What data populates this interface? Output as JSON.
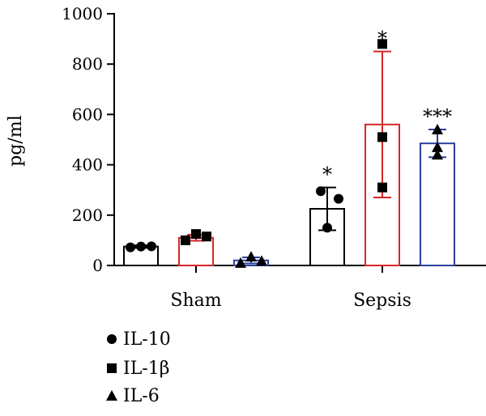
{
  "chart_data": {
    "type": "bar",
    "title": "",
    "xlabel": "",
    "ylabel": "pg/ml",
    "ylim": [
      0,
      1000
    ],
    "yticks": [
      0,
      200,
      400,
      600,
      800,
      1000
    ],
    "categories": [
      "Sham",
      "Sepsis"
    ],
    "grid": false,
    "legend_position": "bottom-left",
    "series": [
      {
        "name": "IL-10",
        "marker": "circle",
        "color": "#000000",
        "values": [
          75,
          225
        ],
        "error": [
          5,
          85
        ],
        "points": [
          [
            72,
            75,
            76
          ],
          [
            295,
            265,
            150
          ]
        ],
        "significance": [
          "",
          "*"
        ]
      },
      {
        "name": "IL-1β",
        "marker": "square",
        "color": "#d62728",
        "values": [
          110,
          560
        ],
        "error": [
          12,
          290
        ],
        "points": [
          [
            100,
            125,
            115
          ],
          [
            880,
            510,
            310
          ]
        ],
        "significance": [
          "",
          "*"
        ]
      },
      {
        "name": "IL-6",
        "marker": "triangle",
        "color": "#2b3f9e",
        "values": [
          20,
          485
        ],
        "error": [
          12,
          55
        ],
        "points": [
          [
            10,
            35,
            18
          ],
          [
            540,
            470,
            440
          ]
        ],
        "significance": [
          "",
          "***"
        ]
      }
    ]
  }
}
